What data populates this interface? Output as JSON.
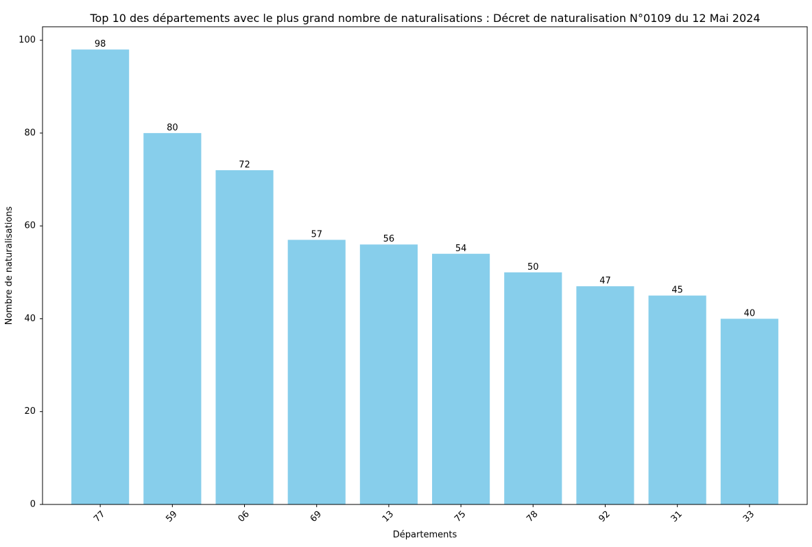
{
  "chart_data": {
    "type": "bar",
    "title": "Top 10 des départements avec le plus grand nombre de naturalisations : Décret de naturalisation N°0109 du 12 Mai 2024",
    "xlabel": "Départements",
    "ylabel": "Nombre de naturalisations",
    "categories": [
      "77",
      "59",
      "06",
      "69",
      "13",
      "75",
      "78",
      "92",
      "31",
      "33"
    ],
    "values": [
      98,
      80,
      72,
      57,
      56,
      54,
      50,
      47,
      45,
      40
    ],
    "ylim": [
      0,
      102.9
    ],
    "yticks": [
      0,
      20,
      40,
      60,
      80,
      100
    ],
    "grid": false,
    "legend": "none",
    "data_labels": true,
    "x_tick_rotation": 45
  },
  "colors": {
    "bar": "#87ceeb",
    "axis": "#000000",
    "text": "#000000"
  }
}
